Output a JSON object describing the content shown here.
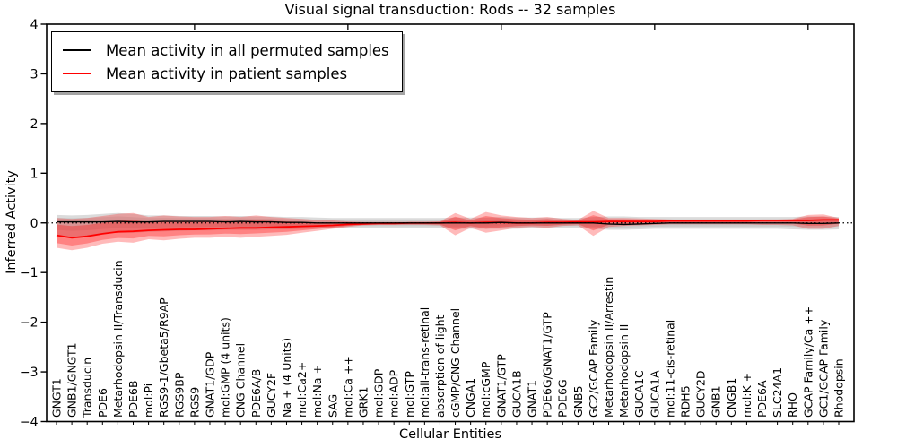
{
  "title": "Visual signal transduction: Rods -- 32 samples",
  "xlabel": "Cellular Entities",
  "ylabel": "Inferred Activity",
  "legend": {
    "items": [
      {
        "label": "Mean activity in all permuted samples",
        "color": "#000000"
      },
      {
        "label": "Mean activity in patient samples",
        "color": "#ff0000"
      }
    ]
  },
  "colors": {
    "permuted_line": "#000000",
    "patient_line": "#ff0000",
    "permuted_band": "rgba(0,0,0,0.14)",
    "patient_band": "rgba(255,0,0,0.27)",
    "zero_line": "#000000",
    "axes": "#000000",
    "background": "#ffffff"
  },
  "chart_data": {
    "type": "line",
    "title": "Visual signal transduction: Rods -- 32 samples",
    "xlabel": "Cellular Entities",
    "ylabel": "Inferred Activity",
    "ylim": [
      -4,
      4
    ],
    "yticks": [
      -4,
      -3,
      -2,
      -1,
      0,
      1,
      2,
      3,
      4
    ],
    "grid": false,
    "legend_position": "upper left",
    "zero_reference_line": 0,
    "x_tick_label_rotation": 90,
    "categories": [
      "GNGT1",
      "GNB1/GNGT1",
      "Transducin",
      "PDE6",
      "Metarhodopsin II/Transducin",
      "PDE6B",
      "mol:Pi",
      "RGS9-1/Gbeta5/R9AP",
      "RGS9BP",
      "RGS9",
      "GNAT1/GDP",
      "mol:GMP (4 units)",
      "CNG Channel",
      "PDE6A/B",
      "GUCY2F",
      "Na + (4 Units)",
      "mol:Ca2+",
      "mol:Na +",
      "SAG",
      "mol:Ca ++",
      "GRK1",
      "mol:GDP",
      "mol:ADP",
      "mol:GTP",
      "mol:all-trans-retinal",
      "absorption of light",
      "cGMP/CNG Channel",
      "CNGA1",
      "mol:cGMP",
      "GNAT1/GTP",
      "GUCA1B",
      "GNAT1",
      "PDE6G/GNAT1/GTP",
      "PDE6G",
      "GNB5",
      "GC2/GCAP Family",
      "Metarhodopsin II/Arrestin",
      "Metarhodopsin II",
      "GUCA1C",
      "GUCA1A",
      "mol:11-cis-retinal",
      "RDH5",
      "GUCY2D",
      "GNB1",
      "CNGB1",
      "mol:K +",
      "PDE6A",
      "SLC24A1",
      "RHO",
      "GCAP Family/Ca ++",
      "GC1/GCAP Family",
      "Rhodopsin"
    ],
    "series": [
      {
        "name": "Mean activity in all permuted samples",
        "color": "#000000",
        "values": [
          0.02,
          0.02,
          0.02,
          0.02,
          0.03,
          0.02,
          0.02,
          0.03,
          0.03,
          0.03,
          0.03,
          0.02,
          0.03,
          0.02,
          0.02,
          0.01,
          0.01,
          0.0,
          0.0,
          0.0,
          0.0,
          0.0,
          0.0,
          0.0,
          0.0,
          0.0,
          0.0,
          0.0,
          0.0,
          0.01,
          0.0,
          0.0,
          0.0,
          0.0,
          0.0,
          0.0,
          -0.02,
          -0.03,
          -0.02,
          -0.01,
          0.0,
          0.0,
          0.0,
          0.0,
          0.0,
          0.0,
          0.0,
          0.0,
          0.0,
          -0.01,
          -0.01,
          0.0
        ],
        "band_upper": [
          0.16,
          0.15,
          0.16,
          0.18,
          0.2,
          0.18,
          0.15,
          0.15,
          0.14,
          0.14,
          0.14,
          0.13,
          0.14,
          0.13,
          0.13,
          0.12,
          0.12,
          0.11,
          0.1,
          0.1,
          0.1,
          0.1,
          0.1,
          0.1,
          0.1,
          0.1,
          0.11,
          0.11,
          0.11,
          0.12,
          0.11,
          0.11,
          0.11,
          0.1,
          0.1,
          0.12,
          0.13,
          0.13,
          0.12,
          0.12,
          0.12,
          0.12,
          0.12,
          0.12,
          0.12,
          0.12,
          0.12,
          0.12,
          0.12,
          0.13,
          0.13,
          0.12
        ],
        "band_lower": [
          -0.25,
          -0.28,
          -0.26,
          -0.22,
          -0.2,
          -0.2,
          -0.18,
          -0.17,
          -0.16,
          -0.15,
          -0.15,
          -0.14,
          -0.14,
          -0.14,
          -0.13,
          -0.13,
          -0.12,
          -0.12,
          -0.11,
          -0.11,
          -0.11,
          -0.11,
          -0.11,
          -0.11,
          -0.11,
          -0.11,
          -0.12,
          -0.12,
          -0.12,
          -0.12,
          -0.12,
          -0.11,
          -0.11,
          -0.11,
          -0.11,
          -0.12,
          -0.14,
          -0.14,
          -0.13,
          -0.12,
          -0.12,
          -0.12,
          -0.12,
          -0.12,
          -0.12,
          -0.12,
          -0.12,
          -0.12,
          -0.13,
          -0.14,
          -0.14,
          -0.13
        ]
      },
      {
        "name": "Mean activity in patient samples",
        "color": "#ff0000",
        "values": [
          -0.25,
          -0.3,
          -0.27,
          -0.22,
          -0.18,
          -0.17,
          -0.15,
          -0.14,
          -0.13,
          -0.13,
          -0.12,
          -0.11,
          -0.1,
          -0.1,
          -0.09,
          -0.08,
          -0.07,
          -0.06,
          -0.05,
          -0.03,
          -0.02,
          -0.01,
          -0.01,
          0.0,
          0.0,
          0.0,
          0.01,
          0.0,
          0.01,
          0.01,
          0.0,
          0.0,
          0.01,
          0.01,
          0.02,
          0.02,
          0.03,
          0.03,
          0.03,
          0.03,
          0.04,
          0.04,
          0.04,
          0.04,
          0.04,
          0.04,
          0.05,
          0.05,
          0.05,
          0.05,
          0.06,
          0.06
        ],
        "band_upper": [
          0.1,
          0.08,
          0.1,
          0.14,
          0.18,
          0.2,
          0.12,
          0.15,
          0.13,
          0.12,
          0.12,
          0.14,
          0.12,
          0.15,
          0.12,
          0.1,
          0.08,
          0.06,
          0.05,
          0.03,
          0.02,
          0.02,
          0.02,
          0.02,
          0.02,
          0.03,
          0.2,
          0.08,
          0.22,
          0.15,
          0.12,
          0.1,
          0.12,
          0.08,
          0.06,
          0.24,
          0.1,
          0.1,
          0.09,
          0.08,
          0.07,
          0.06,
          0.06,
          0.06,
          0.06,
          0.06,
          0.07,
          0.07,
          0.08,
          0.16,
          0.17,
          0.1
        ],
        "band_lower": [
          -0.5,
          -0.55,
          -0.5,
          -0.42,
          -0.38,
          -0.4,
          -0.33,
          -0.35,
          -0.32,
          -0.3,
          -0.3,
          -0.28,
          -0.3,
          -0.28,
          -0.26,
          -0.24,
          -0.2,
          -0.16,
          -0.12,
          -0.08,
          -0.05,
          -0.04,
          -0.04,
          -0.04,
          -0.04,
          -0.05,
          -0.25,
          -0.1,
          -0.2,
          -0.15,
          -0.1,
          -0.08,
          -0.1,
          -0.06,
          -0.05,
          -0.26,
          -0.08,
          -0.06,
          -0.05,
          -0.04,
          -0.03,
          -0.03,
          -0.03,
          -0.03,
          -0.03,
          -0.03,
          -0.04,
          -0.04,
          -0.05,
          -0.12,
          -0.12,
          -0.06
        ]
      }
    ]
  }
}
